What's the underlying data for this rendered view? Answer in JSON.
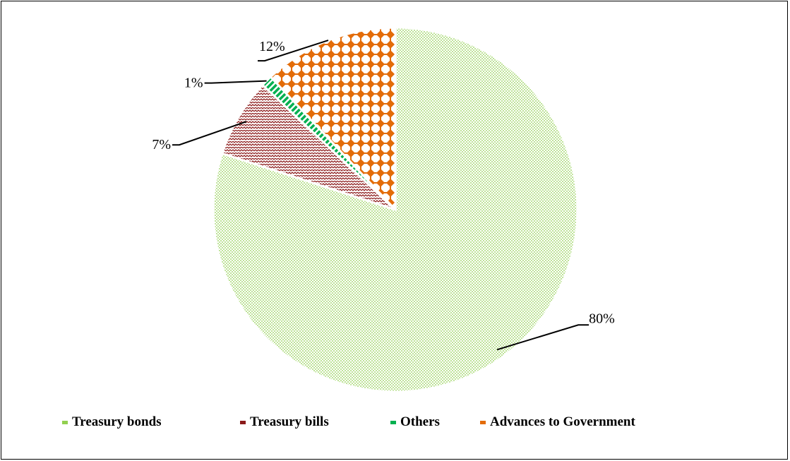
{
  "chart_data": {
    "type": "pie",
    "categories": [
      "Treasury bonds",
      "Treasury bills",
      "Others",
      "Advances to Government"
    ],
    "values": [
      80,
      7,
      1,
      12
    ],
    "data_labels": [
      "80%",
      "7%",
      "1%",
      "12%"
    ],
    "legend_placement": "bottom",
    "colors": [
      "#92d050",
      "#8b1a1a",
      "#00b050",
      "#e36c09"
    ],
    "patterns": [
      "dots",
      "zigzag",
      "diagonal-stripes",
      "diamond-grid"
    ]
  }
}
